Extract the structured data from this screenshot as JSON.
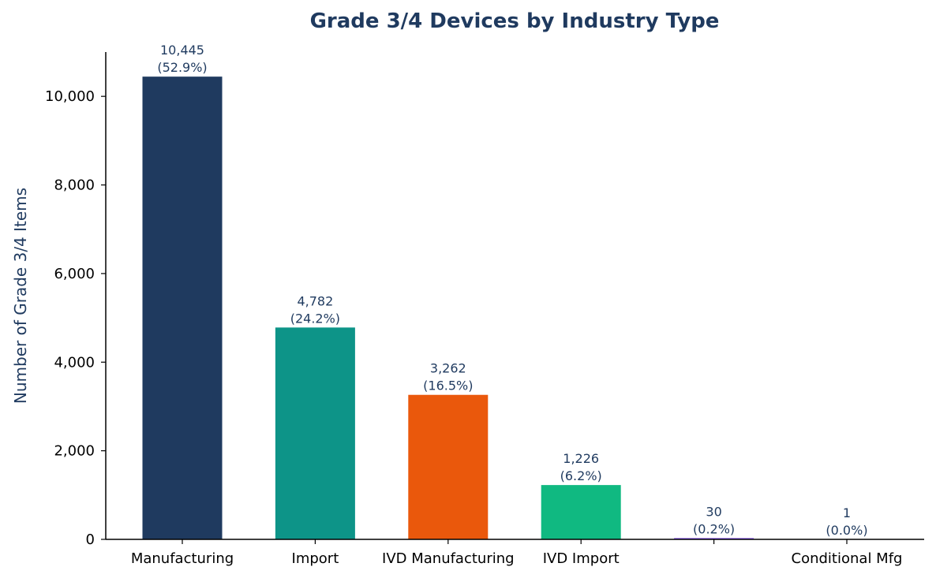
{
  "chart_data": {
    "type": "bar",
    "title": "Grade 3/4 Devices by Industry Type",
    "xlabel": "",
    "ylabel": "Number of Grade 3/4 Items",
    "ylim": [
      0,
      11000
    ],
    "yticks": [
      0,
      2000,
      4000,
      6000,
      8000,
      10000
    ],
    "ytick_labels": [
      "0",
      "2,000",
      "4,000",
      "6,000",
      "8,000",
      "10,000"
    ],
    "categories": [
      "Manufacturing",
      "Import",
      "IVD Manufacturing",
      "IVD Import",
      "",
      "Conditional Mfg"
    ],
    "values": [
      10445,
      4782,
      3262,
      1226,
      30,
      1
    ],
    "value_labels": [
      "10,445",
      "4,782",
      "3,262",
      "1,226",
      "30",
      "1"
    ],
    "percent_labels": [
      "(52.9%)",
      "(24.2%)",
      "(16.5%)",
      "(6.2%)",
      "(0.2%)",
      "(0.0%)"
    ],
    "colors": [
      "#1f3a5f",
      "#0d9488",
      "#ea580c",
      "#10b981",
      "#8b5cf6",
      "#64748b"
    ],
    "grid": false,
    "legend": "none"
  }
}
